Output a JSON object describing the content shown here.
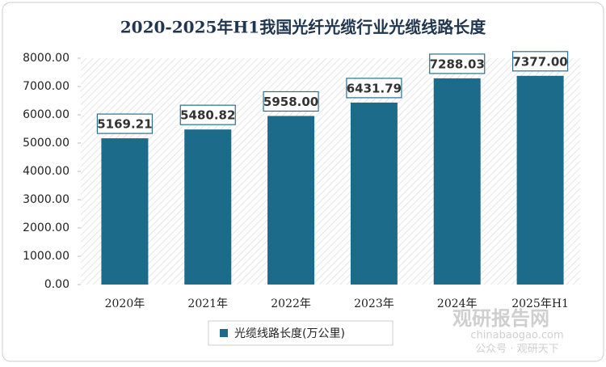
{
  "chart_data": {
    "type": "bar",
    "title": "2020-2025年H1我国光纤光缆行业光缆线路长度",
    "categories": [
      "2020年",
      "2021年",
      "2022年",
      "2023年",
      "2024年",
      "2025年H1"
    ],
    "series": [
      {
        "name": "光缆线路长度(万公里)",
        "color": "#1d6b8b",
        "values": [
          5169.21,
          5480.82,
          5958,
          6431.79,
          7288.03,
          7377
        ],
        "value_labels": [
          "5169.21",
          "5480.82",
          "5958.00",
          "6431.79",
          "7288.03",
          "7377.00"
        ]
      }
    ],
    "ylim": [
      0,
      8000
    ],
    "yticks": [
      {
        "value": 0,
        "label": "0.00"
      },
      {
        "value": 1000,
        "label": "1000.00"
      },
      {
        "value": 2000,
        "label": "2000.00"
      },
      {
        "value": 3000,
        "label": "3000.00"
      },
      {
        "value": 4000,
        "label": "4000.00"
      },
      {
        "value": 5000,
        "label": "5000.00"
      },
      {
        "value": 6000,
        "label": "6000.00"
      },
      {
        "value": 7000,
        "label": "7000.00"
      },
      {
        "value": 8000,
        "label": "8000.00"
      }
    ],
    "grid": false,
    "legend": "bottom"
  },
  "watermark": {
    "site": "观研报告网",
    "url": "chinabaogao.com",
    "account": "公众号 · 观研天下"
  }
}
